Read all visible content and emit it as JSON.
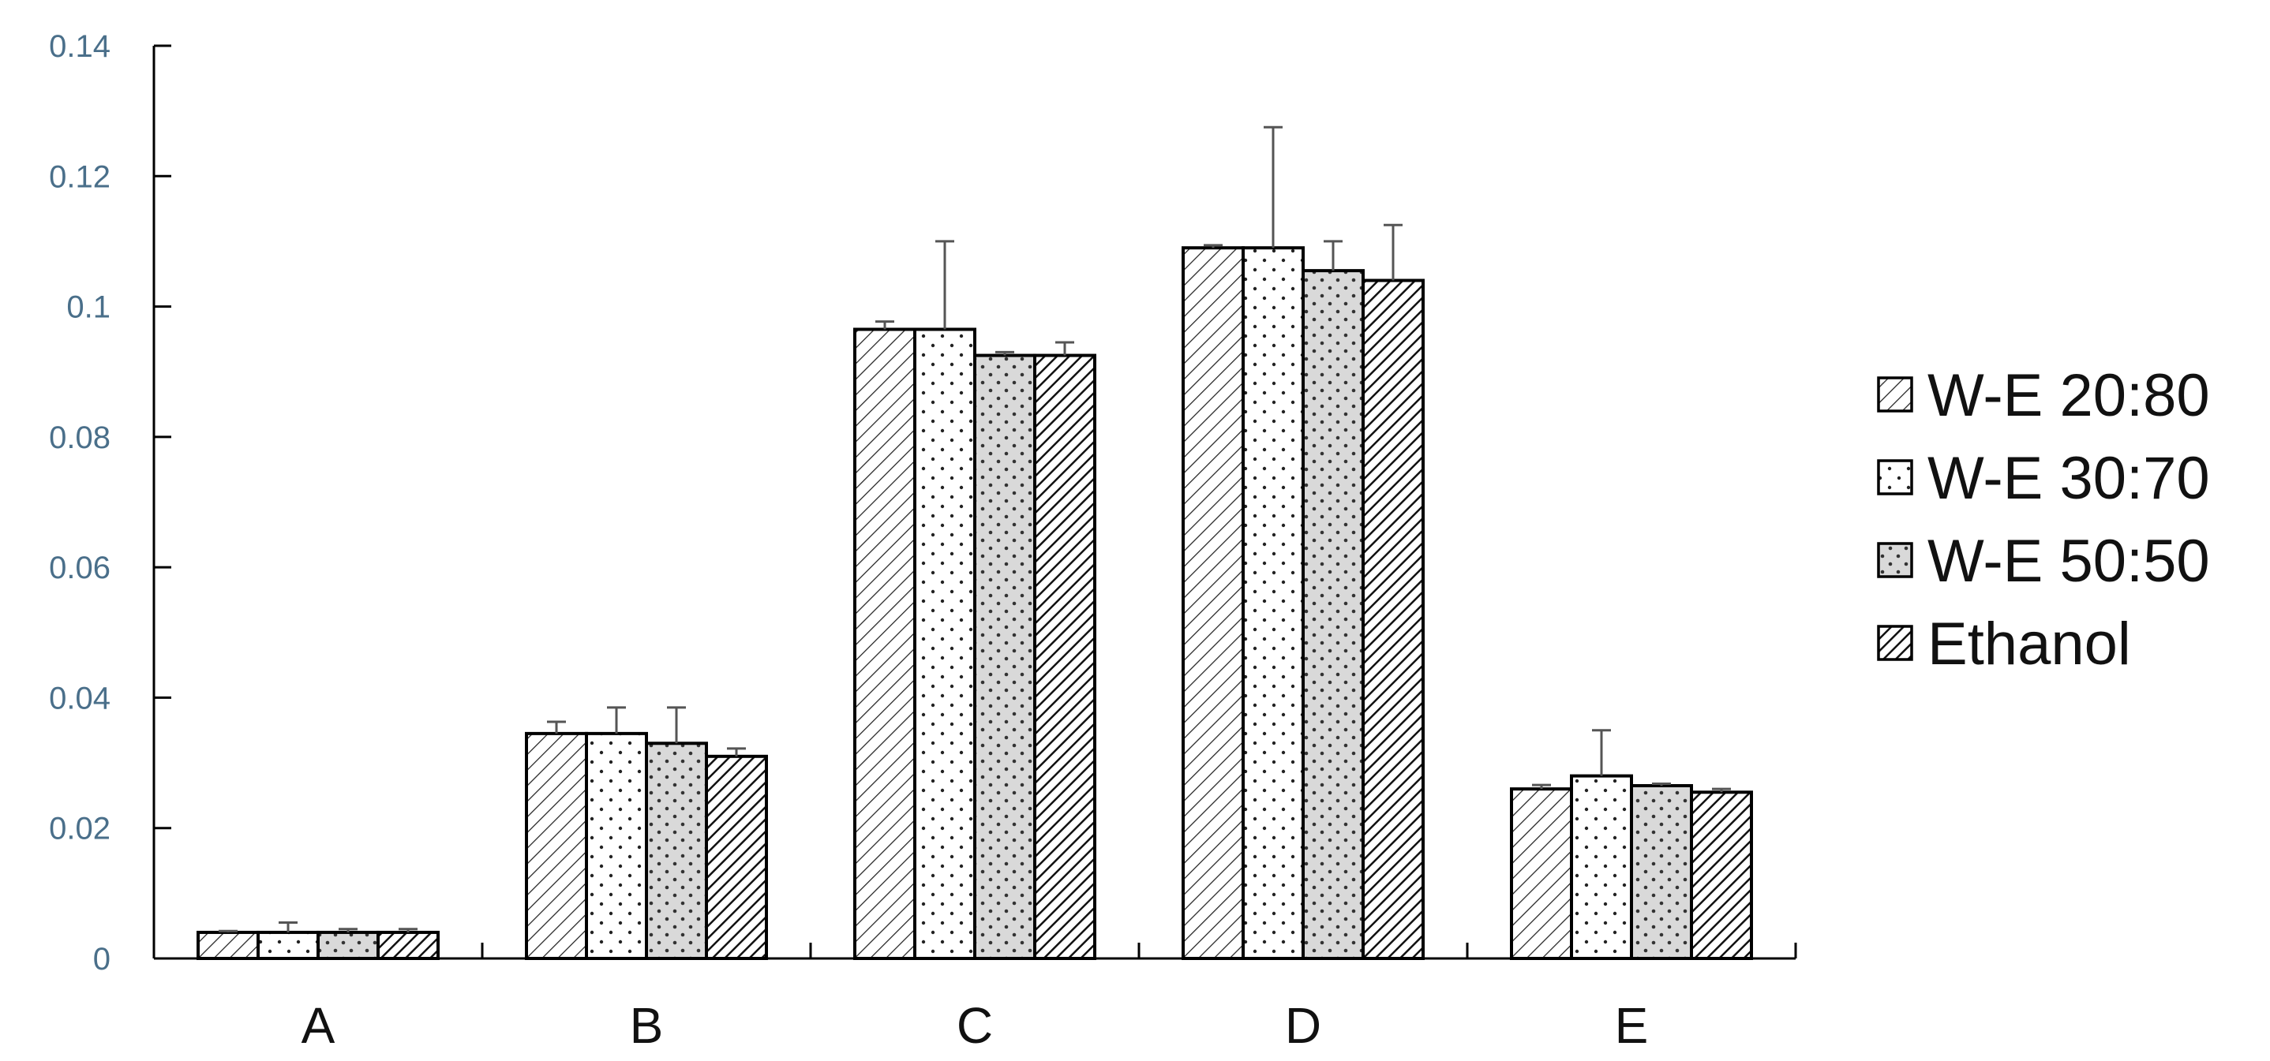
{
  "chart_data": {
    "type": "bar",
    "categories": [
      "A",
      "B",
      "C",
      "D",
      "E"
    ],
    "ylim": [
      0,
      0.14
    ],
    "yticks": [
      "0",
      "0.02",
      "0.04",
      "0.06",
      "0.08",
      "0.1",
      "0.12",
      "0.14"
    ],
    "title": "",
    "xlabel": "",
    "ylabel": "",
    "grid": false,
    "legend_position": "right",
    "series": [
      {
        "name": "W-E 20:80",
        "pattern": "diagonal-hatch",
        "fill": "#ffffff",
        "values": [
          0.004,
          0.0345,
          0.0965,
          0.109,
          0.026
        ],
        "errors": [
          0.0002,
          0.0018,
          0.0012,
          0.0004,
          0.0006
        ]
      },
      {
        "name": "W-E 30:70",
        "pattern": "sparse-dots",
        "fill": "#ffffff",
        "values": [
          0.004,
          0.0345,
          0.0965,
          0.109,
          0.028
        ],
        "errors": [
          0.0015,
          0.004,
          0.0135,
          0.0185,
          0.007
        ]
      },
      {
        "name": "W-E 50:50",
        "pattern": "dots-on-gray",
        "fill": "#d9d9d9",
        "values": [
          0.004,
          0.033,
          0.0925,
          0.1055,
          0.0265
        ],
        "errors": [
          0.0005,
          0.0055,
          0.0005,
          0.0045,
          0.0003
        ]
      },
      {
        "name": "Ethanol",
        "pattern": "dense-diagonal",
        "fill": "#ffffff",
        "values": [
          0.004,
          0.031,
          0.0925,
          0.104,
          0.0255
        ],
        "errors": [
          0.0005,
          0.0012,
          0.002,
          0.0085,
          0.0005
        ]
      }
    ]
  }
}
